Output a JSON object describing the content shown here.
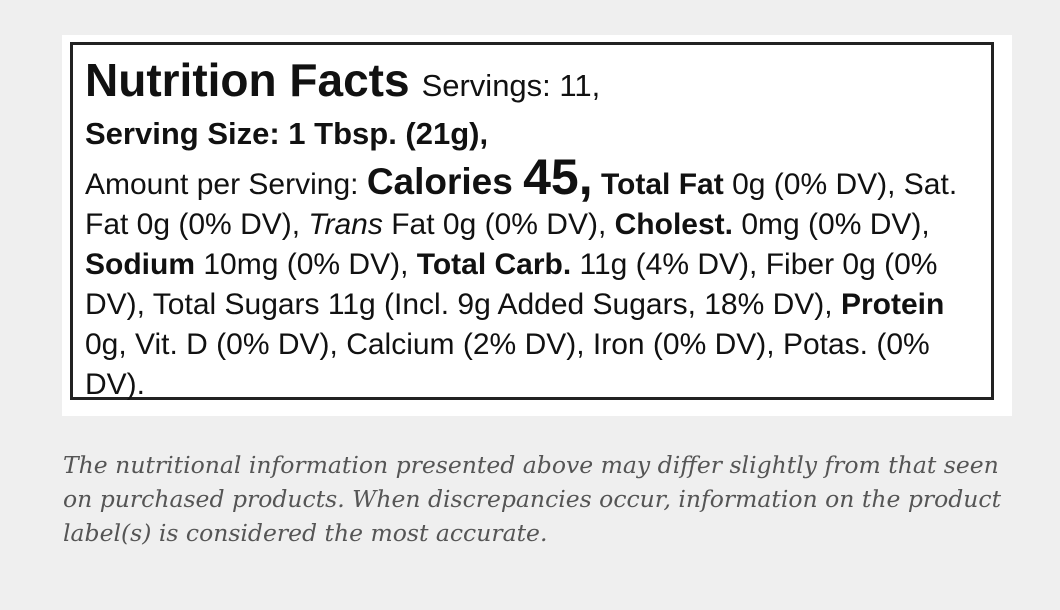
{
  "label": {
    "title": "Nutrition Facts",
    "servings": "Servings: 11,",
    "serving_size": "Serving Size: 1 Tbsp. (21g),",
    "body": [
      {
        "text": "Amount per Serving: ",
        "style": "plain"
      },
      {
        "text": "Calories ",
        "style": "big"
      },
      {
        "text": "45,",
        "style": "huge"
      },
      {
        "text": " Total Fat",
        "style": "bold"
      },
      {
        "text": " 0g (0% DV), Sat. Fat 0g (0% DV), ",
        "style": "plain"
      },
      {
        "text": "Trans",
        "style": "italic"
      },
      {
        "text": " Fat 0g (0% DV), ",
        "style": "plain"
      },
      {
        "text": "Cholest.",
        "style": "bold"
      },
      {
        "text": " 0mg (0% DV), ",
        "style": "plain"
      },
      {
        "text": "Sodium",
        "style": "bold"
      },
      {
        "text": " 10mg (0% DV), ",
        "style": "plain"
      },
      {
        "text": "Total Carb.",
        "style": "bold"
      },
      {
        "text": " 11g (4% DV), Fiber 0g (0% DV), Total Sugars 11g (Incl. 9g Added Sugars, 18% DV), ",
        "style": "plain"
      },
      {
        "text": "Protein",
        "style": "bold"
      },
      {
        "text": " 0g, Vit. D (0% DV), Calcium (2% DV), Iron (0% DV), Potas. (0% DV).",
        "style": "plain"
      }
    ]
  },
  "disclaimer": "The nutritional information presented above may differ slightly from that seen on purchased products. When discrepancies occur, information on the product label(s) is considered the most accurate."
}
